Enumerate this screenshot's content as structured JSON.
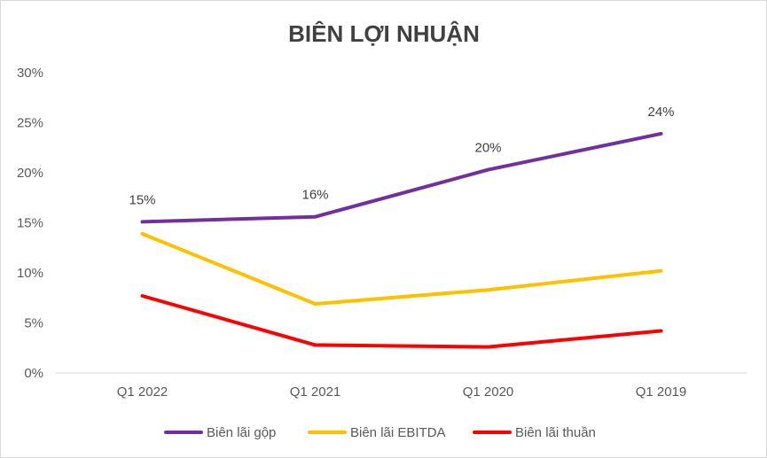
{
  "chart_data": {
    "type": "line",
    "title": "BIÊN LỢI NHUẬN",
    "categories": [
      "Q1 2022",
      "Q1 2021",
      "Q1 2020",
      "Q1 2019"
    ],
    "ylim": [
      0,
      30
    ],
    "yticks": [
      0,
      5,
      10,
      15,
      20,
      25,
      30
    ],
    "ytick_labels": [
      "0%",
      "5%",
      "10%",
      "15%",
      "20%",
      "25%",
      "30%"
    ],
    "grid": false,
    "legend_position": "bottom",
    "series": [
      {
        "name": "Biên lãi gộp",
        "color": "#7030A0",
        "values": [
          15.1,
          15.6,
          20.3,
          23.9
        ],
        "data_labels": [
          "15%",
          "16%",
          "20%",
          "24%"
        ]
      },
      {
        "name": "Biên lãi EBITDA",
        "color": "#FFC000",
        "values": [
          13.9,
          6.9,
          8.3,
          10.2
        ],
        "data_labels": []
      },
      {
        "name": "Biên lãi thuần",
        "color": "#FF0000",
        "values": [
          7.7,
          2.8,
          2.6,
          4.2
        ],
        "data_labels": []
      }
    ]
  }
}
